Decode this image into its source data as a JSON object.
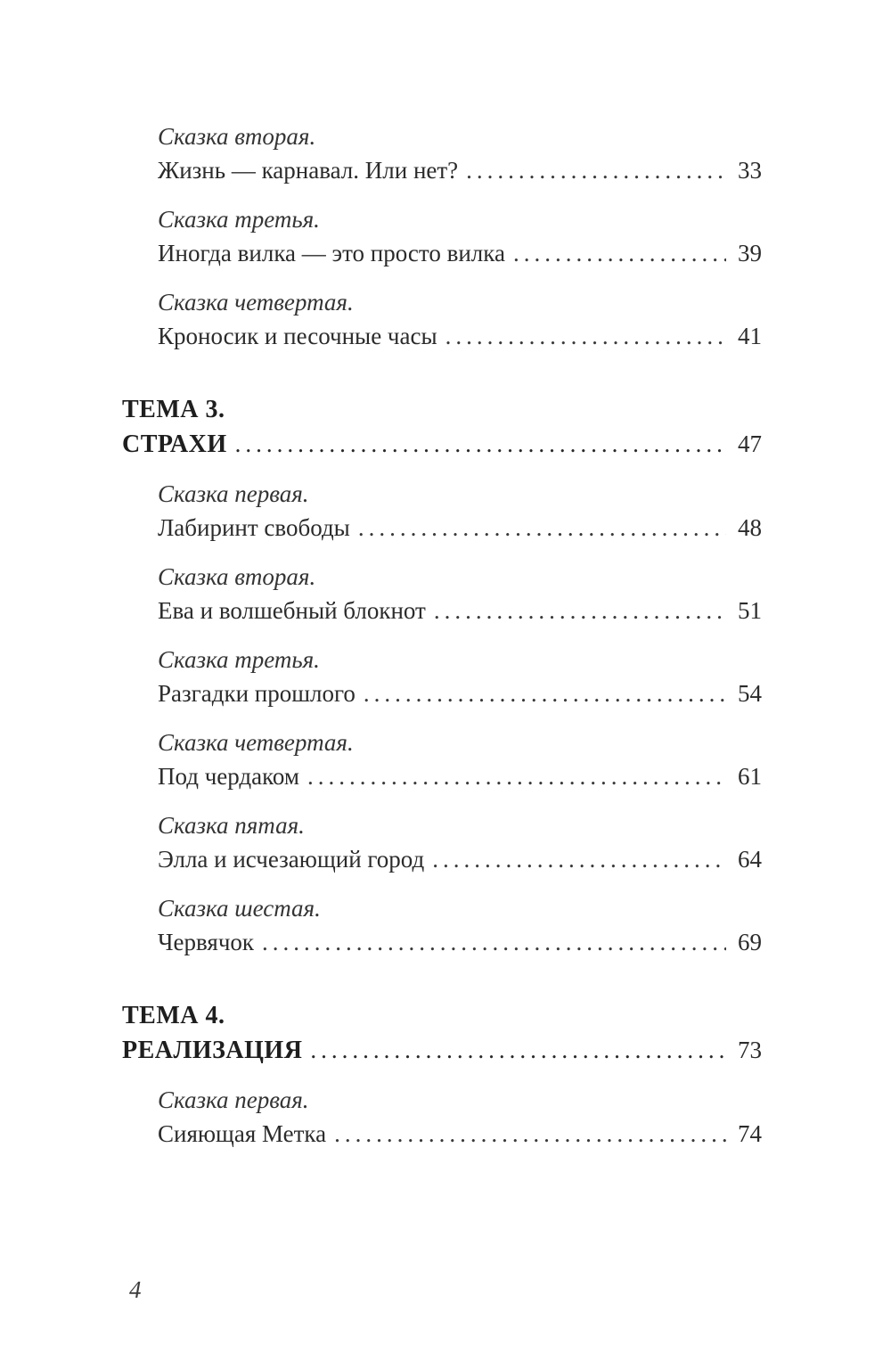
{
  "colors": {
    "background": "#ffffff",
    "body_text": "#2b2b2b",
    "heading_text": "#1e1e1e",
    "leader_dots": "#3a3a3a"
  },
  "footer": {
    "page_number": "4"
  },
  "toc": {
    "blocks": [
      {
        "kind": "entry",
        "subtitle": "Сказка вторая.",
        "title": "Жизнь — карнавал. Или нет?",
        "page": "33"
      },
      {
        "kind": "entry",
        "subtitle": "Сказка третья.",
        "title": "Иногда вилка — это просто вилка",
        "page": "39"
      },
      {
        "kind": "entry",
        "subtitle": "Сказка четвертая.",
        "title": "Кроносик и песочные часы",
        "page": "41"
      },
      {
        "kind": "theme",
        "label": "ТЕМА 3.",
        "title": "СТРАХИ",
        "page": "47"
      },
      {
        "kind": "entry",
        "subtitle": "Сказка первая.",
        "title": "Лабиринт свободы",
        "page": "48"
      },
      {
        "kind": "entry",
        "subtitle": "Сказка вторая.",
        "title": "Ева и волшебный блокнот",
        "page": "51"
      },
      {
        "kind": "entry",
        "subtitle": "Сказка третья.",
        "title": "Разгадки прошлого",
        "page": "54"
      },
      {
        "kind": "entry",
        "subtitle": "Сказка четвертая.",
        "title": "Под чердаком",
        "page": "61"
      },
      {
        "kind": "entry",
        "subtitle": "Сказка пятая.",
        "title": "Элла и исчезающий город",
        "page": "64"
      },
      {
        "kind": "entry",
        "subtitle": "Сказка шестая.",
        "title": "Червячок",
        "page": "69"
      },
      {
        "kind": "theme",
        "label": "ТЕМА 4.",
        "title": "РЕАЛИЗАЦИЯ",
        "page": "73"
      },
      {
        "kind": "entry",
        "subtitle": "Сказка первая.",
        "title": "Сияющая Метка",
        "page": "74"
      }
    ]
  }
}
